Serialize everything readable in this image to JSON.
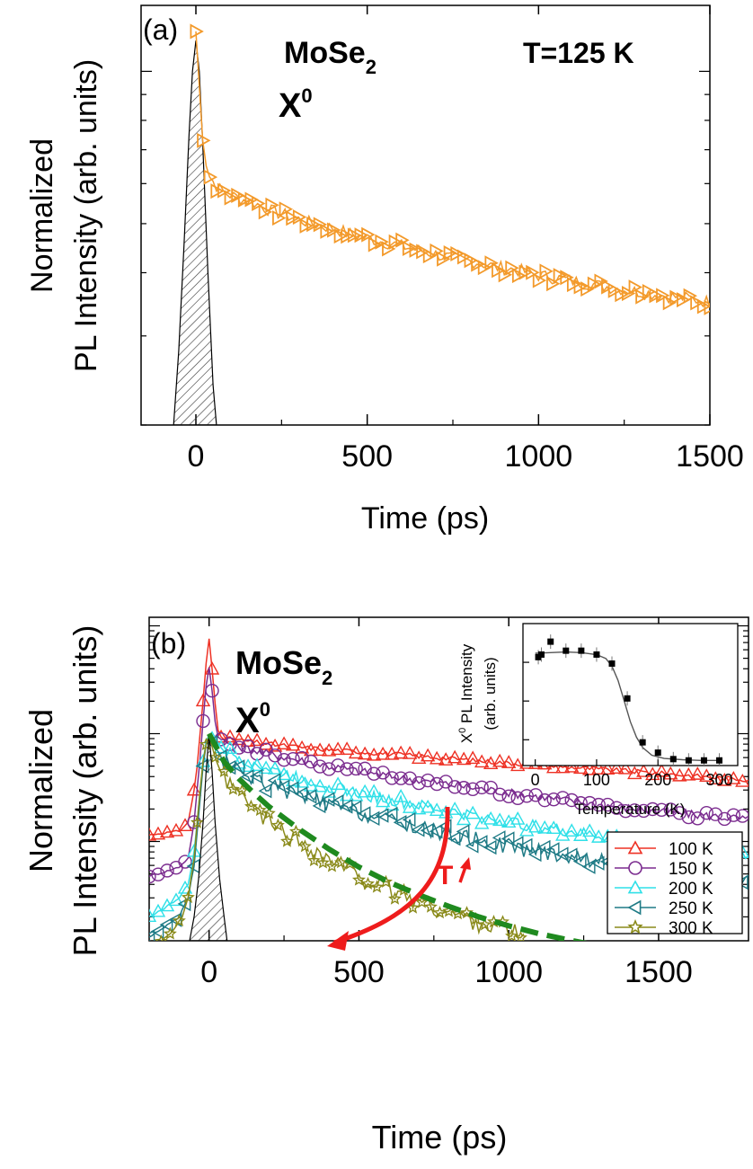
{
  "chart_data": [
    {
      "panel": "(a)",
      "type": "line",
      "title": "T=125 K",
      "material": {
        "base": "MoSe",
        "sub": "2"
      },
      "exciton": {
        "base": "X",
        "sup": "0"
      },
      "xlabel": "Time (ps)",
      "ylabel_line1": "Normalized",
      "ylabel_line2": "PL Intensity (arb. units)",
      "xlim": [
        -160,
        1500
      ],
      "ylim_log": [
        0.2,
        1.35
      ],
      "xticks": [
        0,
        500,
        1000,
        1500
      ],
      "y_scale": "log",
      "grid": false,
      "irf": {
        "x": [
          -65,
          -50,
          -35,
          -20,
          -10,
          0,
          10,
          20,
          35,
          50,
          60
        ],
        "y": [
          0.2,
          0.28,
          0.45,
          0.75,
          1.0,
          1.15,
          1.0,
          0.72,
          0.4,
          0.24,
          0.2
        ]
      },
      "series": [
        {
          "color": "#f39a2b",
          "marker": "triangle-right",
          "x": [
            0,
            8,
            15,
            22,
            30,
            40,
            55,
            75,
            100,
            130,
            170,
            220,
            280,
            340,
            400,
            460,
            520,
            580,
            640,
            700,
            760,
            820,
            880,
            940,
            1000,
            1060,
            1120,
            1180,
            1240,
            1300,
            1360,
            1420,
            1480,
            1500
          ],
          "y": [
            1.2,
            0.98,
            0.82,
            0.72,
            0.66,
            0.62,
            0.6,
            0.58,
            0.57,
            0.56,
            0.55,
            0.53,
            0.515,
            0.5,
            0.49,
            0.475,
            0.465,
            0.455,
            0.445,
            0.435,
            0.425,
            0.42,
            0.41,
            0.405,
            0.395,
            0.39,
            0.383,
            0.377,
            0.372,
            0.366,
            0.361,
            0.357,
            0.352,
            0.35
          ]
        }
      ]
    },
    {
      "panel": "(b)",
      "type": "line",
      "material": {
        "base": "MoSe",
        "sub": "2"
      },
      "exciton": {
        "base": "X",
        "sup": "0"
      },
      "xlabel": "Time (ps)",
      "ylabel_line1": "Normalized",
      "ylabel_line2": "PL Intensity (arb. units)",
      "xlim": [
        -200,
        1800
      ],
      "ylim_log": [
        0.012,
        12
      ],
      "xticks": [
        0,
        500,
        1000,
        1500
      ],
      "y_scale": "log",
      "grid": false,
      "legend_position": "bottom-right",
      "annotation": "T",
      "irf": {
        "x": [
          -65,
          -50,
          -35,
          -20,
          -10,
          0,
          10,
          20,
          35,
          50,
          60
        ],
        "y": [
          0.012,
          0.02,
          0.045,
          0.15,
          0.45,
          1.0,
          0.45,
          0.15,
          0.045,
          0.02,
          0.012
        ]
      },
      "series": [
        {
          "name": "100 K",
          "color": "#ee3124",
          "marker": "triangle-up",
          "x": [
            -200,
            -150,
            -100,
            -70,
            -50,
            -40,
            -30,
            -20,
            -10,
            0,
            10,
            20,
            30,
            40,
            60,
            100,
            150,
            200,
            300,
            400,
            500,
            600,
            700,
            800,
            900,
            1000,
            1100,
            1200,
            1300,
            1400,
            1500,
            1600,
            1700,
            1800
          ],
          "y": [
            0.115,
            0.12,
            0.125,
            0.15,
            0.3,
            0.5,
            1.0,
            2.0,
            4.5,
            7.5,
            4.0,
            1.9,
            1.1,
            0.95,
            0.9,
            0.87,
            0.84,
            0.8,
            0.75,
            0.71,
            0.68,
            0.65,
            0.62,
            0.59,
            0.56,
            0.535,
            0.51,
            0.49,
            0.47,
            0.45,
            0.43,
            0.41,
            0.39,
            0.375
          ]
        },
        {
          "name": "150 K",
          "color": "#7b2c8f",
          "marker": "circle",
          "x": [
            -200,
            -150,
            -100,
            -70,
            -50,
            -40,
            -30,
            -20,
            -10,
            0,
            10,
            20,
            30,
            40,
            60,
            100,
            150,
            200,
            300,
            400,
            500,
            600,
            700,
            800,
            900,
            1000,
            1100,
            1200,
            1300,
            1400,
            1500,
            1600,
            1700,
            1800
          ],
          "y": [
            0.048,
            0.052,
            0.058,
            0.07,
            0.15,
            0.3,
            0.6,
            1.3,
            2.8,
            4.2,
            2.5,
            1.3,
            0.95,
            0.88,
            0.82,
            0.76,
            0.7,
            0.65,
            0.57,
            0.5,
            0.45,
            0.405,
            0.37,
            0.34,
            0.31,
            0.285,
            0.26,
            0.24,
            0.22,
            0.205,
            0.19,
            0.18,
            0.17,
            0.16
          ]
        },
        {
          "name": "200 K",
          "color": "#2fe0e8",
          "marker": "triangle-up",
          "x": [
            -200,
            -150,
            -100,
            -70,
            -50,
            -40,
            -30,
            -20,
            -10,
            0,
            10,
            20,
            30,
            40,
            60,
            100,
            150,
            200,
            300,
            400,
            500,
            600,
            700,
            800,
            900,
            1000,
            1100,
            1200,
            1300,
            1400,
            1500,
            1600,
            1700,
            1800
          ],
          "y": [
            0.02,
            0.024,
            0.03,
            0.04,
            0.08,
            0.15,
            0.3,
            0.55,
            0.85,
            0.98,
            0.9,
            0.85,
            0.8,
            0.75,
            0.68,
            0.6,
            0.53,
            0.47,
            0.39,
            0.33,
            0.28,
            0.245,
            0.215,
            0.19,
            0.17,
            0.152,
            0.137,
            0.124,
            0.113,
            0.103,
            0.095,
            0.088,
            0.081,
            0.075
          ]
        },
        {
          "name": "250 K",
          "color": "#1e7a85",
          "marker": "triangle-left",
          "x": [
            -200,
            -150,
            -100,
            -70,
            -50,
            -40,
            -30,
            -20,
            -10,
            0,
            10,
            20,
            30,
            40,
            60,
            100,
            150,
            200,
            300,
            400,
            500,
            600,
            700,
            800,
            900,
            1000,
            1100,
            1200,
            1300,
            1400,
            1500,
            1600,
            1700,
            1800
          ],
          "y": [
            0.013,
            0.016,
            0.02,
            0.03,
            0.06,
            0.12,
            0.25,
            0.5,
            0.8,
            0.95,
            0.82,
            0.74,
            0.67,
            0.6,
            0.52,
            0.45,
            0.39,
            0.34,
            0.27,
            0.22,
            0.185,
            0.158,
            0.136,
            0.118,
            0.104,
            0.092,
            0.082,
            0.074,
            0.067,
            0.06,
            0.055,
            0.05,
            0.046,
            0.042
          ]
        },
        {
          "name": "300 K",
          "color": "#8a8a1a",
          "marker": "star",
          "x": [
            -160,
            -120,
            -90,
            -70,
            -50,
            -40,
            -30,
            -20,
            -10,
            0,
            10,
            20,
            30,
            40,
            60,
            100,
            150,
            200,
            300,
            400,
            500,
            600,
            700,
            800,
            900,
            1000,
            1050
          ],
          "y": [
            0.012,
            0.015,
            0.02,
            0.03,
            0.07,
            0.15,
            0.3,
            0.55,
            0.8,
            0.95,
            0.75,
            0.6,
            0.5,
            0.43,
            0.35,
            0.27,
            0.2,
            0.155,
            0.1,
            0.068,
            0.048,
            0.036,
            0.028,
            0.022,
            0.018,
            0.015,
            0.013
          ]
        }
      ],
      "fit": {
        "color": "#1f8a1f",
        "style": "dashed",
        "x": [
          0,
          50,
          100,
          150,
          200,
          300,
          400,
          500,
          600,
          700,
          800,
          900,
          1000,
          1100,
          1200,
          1300
        ],
        "y": [
          1.0,
          0.55,
          0.38,
          0.28,
          0.21,
          0.13,
          0.085,
          0.058,
          0.042,
          0.032,
          0.025,
          0.02,
          0.0165,
          0.014,
          0.0122,
          0.0108
        ]
      },
      "inset": {
        "type": "scatter",
        "xlabel": "Temperature (K)",
        "ylabel_line1": {
          "base": "X",
          "sup": "0",
          "rest": " PL Intensity"
        },
        "ylabel_line2": "(arb. units)",
        "xlim": [
          -20,
          330
        ],
        "ylim": [
          0,
          1.1
        ],
        "xticks": [
          0,
          100,
          200,
          300
        ],
        "series": [
          {
            "color": "#000000",
            "marker": "square",
            "x": [
              5,
              10,
              25,
              50,
              75,
              100,
              125,
              150,
              175,
              200,
              225,
              250,
              275,
              300
            ],
            "y": [
              0.84,
              0.86,
              0.96,
              0.89,
              0.89,
              0.86,
              0.79,
              0.52,
              0.18,
              0.1,
              0.05,
              0.04,
              0.04,
              0.04
            ]
          }
        ],
        "fit": {
          "color": "#555555",
          "x": [
            0,
            25,
            50,
            75,
            100,
            115,
            125,
            135,
            145,
            155,
            165,
            175,
            190,
            210,
            240,
            270,
            300
          ],
          "y": [
            0.87,
            0.875,
            0.88,
            0.875,
            0.86,
            0.83,
            0.77,
            0.66,
            0.5,
            0.34,
            0.22,
            0.14,
            0.08,
            0.055,
            0.045,
            0.04,
            0.04
          ]
        }
      }
    }
  ]
}
